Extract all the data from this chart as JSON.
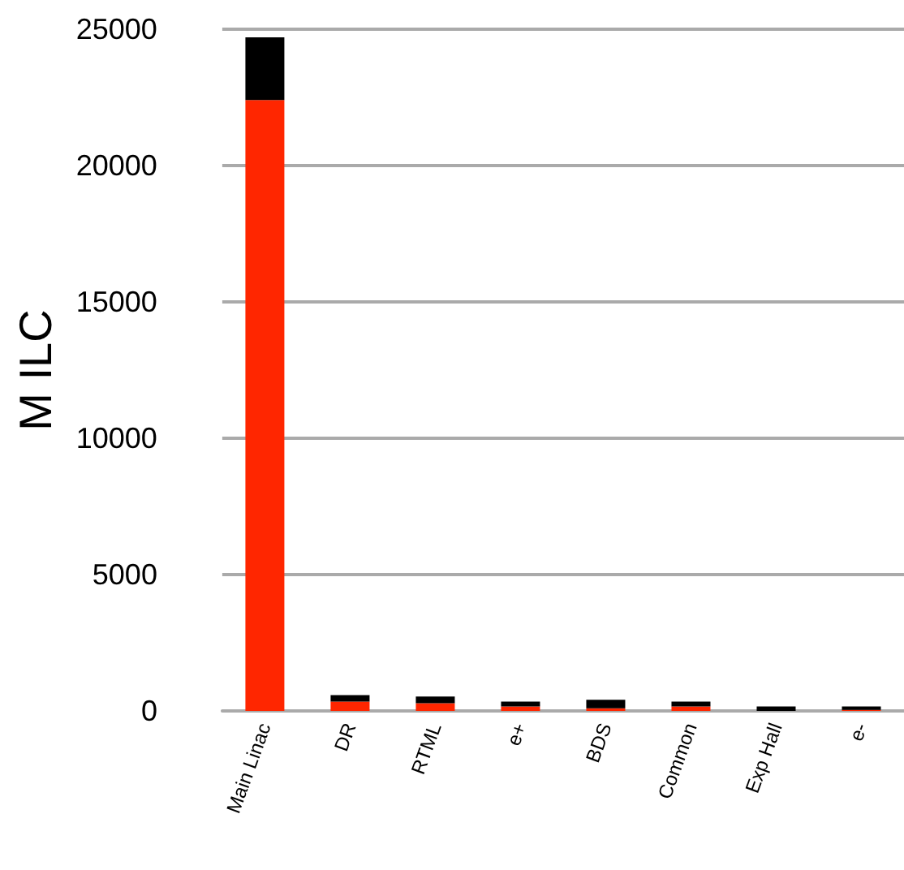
{
  "chart_data": {
    "type": "bar",
    "stacked": true,
    "ylabel": "M ILC",
    "categories": [
      "Main Linac",
      "DR",
      "RTML",
      "e+",
      "BDS",
      "Common",
      "Exp Hall",
      "e-"
    ],
    "series": [
      {
        "color": "#ff2600",
        "values": [
          22400,
          340,
          280,
          160,
          100,
          160,
          0,
          40
        ]
      },
      {
        "color": "#000000",
        "values": [
          2300,
          240,
          250,
          180,
          310,
          180,
          160,
          120
        ]
      }
    ],
    "ylim": [
      0,
      25000
    ],
    "yticks": [
      0,
      5000,
      10000,
      15000,
      20000,
      25000
    ],
    "grid": "y"
  }
}
